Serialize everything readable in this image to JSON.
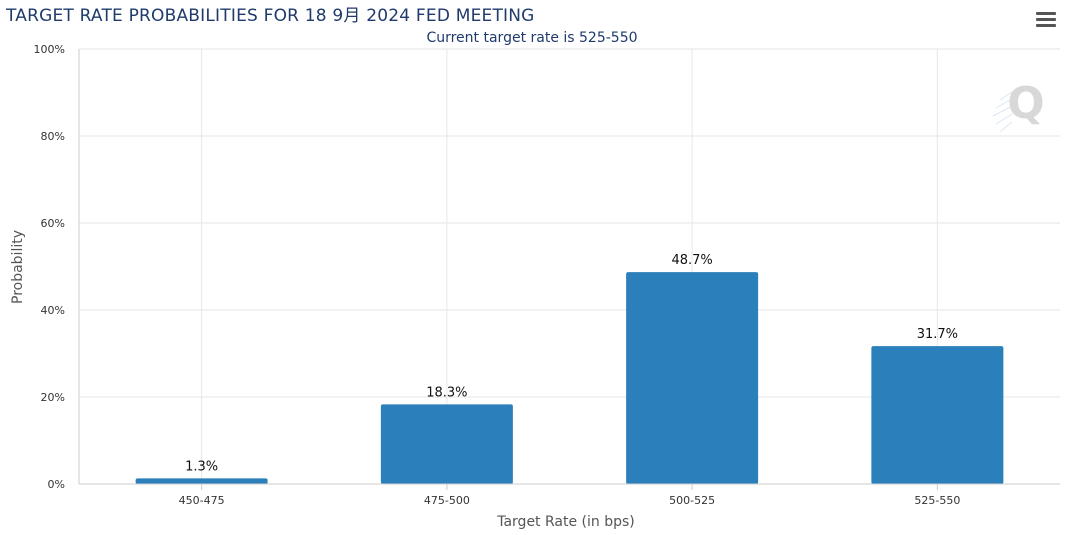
{
  "title": "TARGET RATE PROBABILITIES FOR 18 9月 2024 FED MEETING",
  "subtitle": "Current target rate is 525-550",
  "menu_icon": "hamburger-menu-icon",
  "watermark_icon": "cme-q-logo-icon",
  "colors": {
    "bar": "#2b7fba",
    "grid": "#e6e6e6",
    "text": "#333333",
    "title": "#1f3a6b"
  },
  "chart_data": {
    "type": "bar",
    "categories": [
      "450-475",
      "475-500",
      "500-525",
      "525-550"
    ],
    "values": [
      1.3,
      18.3,
      48.7,
      31.7
    ],
    "data_labels": [
      "1.3%",
      "18.3%",
      "48.7%",
      "31.7%"
    ],
    "ylim": [
      0,
      100
    ],
    "yticks": [
      0,
      20,
      40,
      60,
      80,
      100
    ],
    "ytick_labels": [
      "0%",
      "20%",
      "40%",
      "60%",
      "80%",
      "100%"
    ],
    "xlabel": "Target Rate (in bps)",
    "ylabel": "Probability",
    "grid": true,
    "legend": false
  }
}
